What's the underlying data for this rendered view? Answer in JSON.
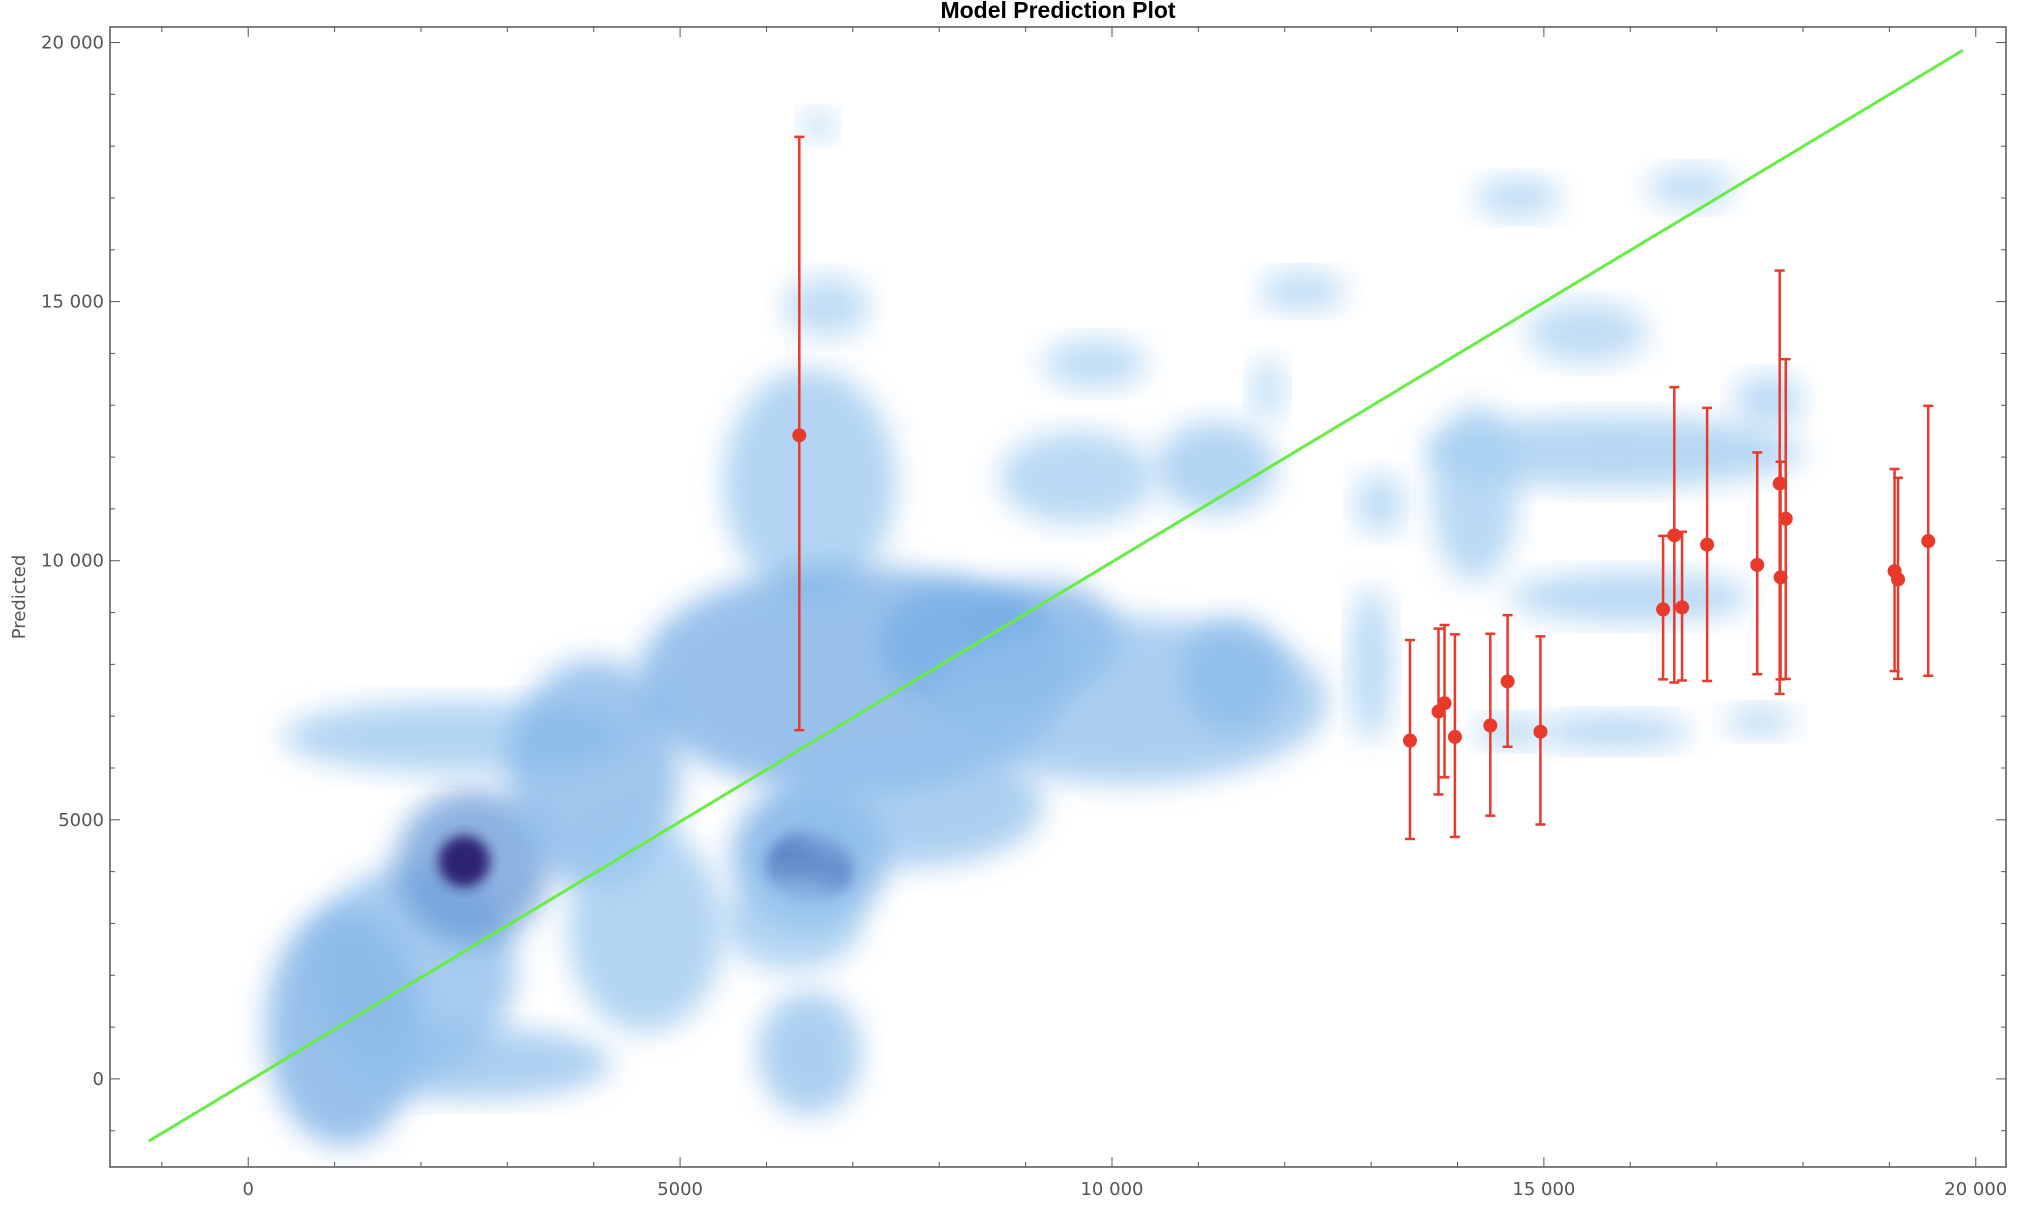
{
  "chart_data": {
    "type": "scatter",
    "title": "Model Prediction Plot",
    "xlabel": "",
    "ylabel": "Predicted",
    "xlim": [
      -1600,
      20350
    ],
    "ylim": [
      -1700,
      20300
    ],
    "x_ticks": [
      0,
      5000,
      10000,
      15000,
      20000
    ],
    "x_tick_labels": [
      "0",
      "5000",
      "10 000",
      "15 000",
      "20 000"
    ],
    "y_ticks": [
      0,
      5000,
      10000,
      15000,
      20000
    ],
    "y_tick_labels": [
      "0",
      "5000",
      "10 000",
      "15 000",
      "20 000"
    ],
    "grid": false,
    "colors": {
      "density_light": "#c6e6fa",
      "density_mid": "#6ea7e3",
      "density_dark": "#2a1a6e",
      "reference_line": "#66ee44",
      "points": "#e8392b",
      "frame": "#555555"
    },
    "reference_line": {
      "x": [
        -1150,
        19850
      ],
      "y": [
        -1200,
        19850
      ]
    },
    "density_blobs": [
      {
        "x": 1100,
        "y": 1000,
        "rx": 900,
        "ry": 2300,
        "level": 0.45
      },
      {
        "x": 1900,
        "y": 2100,
        "rx": 1200,
        "ry": 2000,
        "level": 0.35
      },
      {
        "x": 2600,
        "y": 4100,
        "rx": 900,
        "ry": 1500,
        "level": 0.55
      },
      {
        "x": 2500,
        "y": 4200,
        "rx": 300,
        "ry": 500,
        "level": 1.0
      },
      {
        "x": 2600,
        "y": 300,
        "rx": 1600,
        "ry": 700,
        "level": 0.3
      },
      {
        "x": 2400,
        "y": 6600,
        "rx": 2000,
        "ry": 700,
        "level": 0.25
      },
      {
        "x": 4000,
        "y": 5900,
        "rx": 1000,
        "ry": 2200,
        "level": 0.4
      },
      {
        "x": 4600,
        "y": 2900,
        "rx": 900,
        "ry": 2000,
        "level": 0.25
      },
      {
        "x": 6500,
        "y": 4100,
        "rx": 500,
        "ry": 700,
        "level": 1.0
      },
      {
        "x": 6500,
        "y": 4300,
        "rx": 900,
        "ry": 1400,
        "level": 0.5
      },
      {
        "x": 6500,
        "y": 11500,
        "rx": 1000,
        "ry": 2200,
        "level": 0.25
      },
      {
        "x": 7000,
        "y": 7700,
        "rx": 2500,
        "ry": 2200,
        "level": 0.45
      },
      {
        "x": 8300,
        "y": 8400,
        "rx": 1000,
        "ry": 1200,
        "level": 0.45
      },
      {
        "x": 9200,
        "y": 8500,
        "rx": 900,
        "ry": 1100,
        "level": 0.45
      },
      {
        "x": 10200,
        "y": 7300,
        "rx": 2300,
        "ry": 1600,
        "level": 0.3
      },
      {
        "x": 11400,
        "y": 7800,
        "rx": 600,
        "ry": 1100,
        "level": 0.35
      },
      {
        "x": 11200,
        "y": 11800,
        "rx": 700,
        "ry": 900,
        "level": 0.25
      },
      {
        "x": 6500,
        "y": 500,
        "rx": 600,
        "ry": 1200,
        "level": 0.3
      },
      {
        "x": 9600,
        "y": 11600,
        "rx": 900,
        "ry": 900,
        "level": 0.2
      },
      {
        "x": 15800,
        "y": 12100,
        "rx": 2200,
        "ry": 700,
        "level": 0.22
      },
      {
        "x": 16000,
        "y": 9300,
        "rx": 1400,
        "ry": 500,
        "level": 0.2
      },
      {
        "x": 14200,
        "y": 11300,
        "rx": 500,
        "ry": 1700,
        "level": 0.2
      },
      {
        "x": 15800,
        "y": 6700,
        "rx": 900,
        "ry": 350,
        "level": 0.2
      },
      {
        "x": 13000,
        "y": 8000,
        "rx": 250,
        "ry": 1500,
        "level": 0.18
      },
      {
        "x": 14600,
        "y": 6700,
        "rx": 400,
        "ry": 300,
        "level": 0.18
      },
      {
        "x": 9800,
        "y": 13800,
        "rx": 600,
        "ry": 500,
        "level": 0.15
      },
      {
        "x": 12200,
        "y": 15200,
        "rx": 500,
        "ry": 400,
        "level": 0.15
      },
      {
        "x": 14700,
        "y": 17000,
        "rx": 500,
        "ry": 400,
        "level": 0.15
      },
      {
        "x": 16700,
        "y": 17200,
        "rx": 500,
        "ry": 400,
        "level": 0.15
      },
      {
        "x": 15500,
        "y": 14400,
        "rx": 700,
        "ry": 600,
        "level": 0.15
      },
      {
        "x": 17600,
        "y": 13100,
        "rx": 400,
        "ry": 500,
        "level": 0.18
      },
      {
        "x": 17500,
        "y": 6900,
        "rx": 400,
        "ry": 300,
        "level": 0.15
      },
      {
        "x": 6700,
        "y": 14900,
        "rx": 500,
        "ry": 600,
        "level": 0.15
      },
      {
        "x": 6600,
        "y": 18400,
        "rx": 200,
        "ry": 300,
        "level": 0.12
      },
      {
        "x": 11800,
        "y": 13300,
        "rx": 200,
        "ry": 600,
        "level": 0.12
      },
      {
        "x": 13100,
        "y": 11100,
        "rx": 300,
        "ry": 600,
        "level": 0.15
      },
      {
        "x": 6300,
        "y": 3000,
        "rx": 800,
        "ry": 900,
        "level": 0.25
      },
      {
        "x": 7700,
        "y": 5300,
        "rx": 1500,
        "ry": 1200,
        "level": 0.3
      }
    ],
    "points": [
      {
        "x": 6380,
        "y": 12420,
        "lo": 6730,
        "hi": 18180
      },
      {
        "x": 13450,
        "y": 6530,
        "lo": 4630,
        "hi": 8470
      },
      {
        "x": 13780,
        "y": 7090,
        "lo": 5490,
        "hi": 8690
      },
      {
        "x": 13850,
        "y": 7250,
        "lo": 5820,
        "hi": 8760
      },
      {
        "x": 13970,
        "y": 6600,
        "lo": 4670,
        "hi": 8580
      },
      {
        "x": 14380,
        "y": 6820,
        "lo": 5080,
        "hi": 8590
      },
      {
        "x": 14580,
        "y": 7670,
        "lo": 6410,
        "hi": 8950
      },
      {
        "x": 14960,
        "y": 6700,
        "lo": 4910,
        "hi": 8540
      },
      {
        "x": 16380,
        "y": 9060,
        "lo": 7710,
        "hi": 10480
      },
      {
        "x": 16510,
        "y": 10490,
        "lo": 7650,
        "hi": 13350
      },
      {
        "x": 16600,
        "y": 9100,
        "lo": 7690,
        "hi": 10560
      },
      {
        "x": 16890,
        "y": 10310,
        "lo": 7680,
        "hi": 12950
      },
      {
        "x": 17470,
        "y": 9920,
        "lo": 7810,
        "hi": 12090
      },
      {
        "x": 17730,
        "y": 11490,
        "lo": 7430,
        "hi": 15600
      },
      {
        "x": 17740,
        "y": 9680,
        "lo": 7710,
        "hi": 11910
      },
      {
        "x": 17800,
        "y": 10810,
        "lo": 7720,
        "hi": 13890
      },
      {
        "x": 19060,
        "y": 9800,
        "lo": 7870,
        "hi": 11770
      },
      {
        "x": 19100,
        "y": 9640,
        "lo": 7720,
        "hi": 11600
      },
      {
        "x": 19450,
        "y": 10380,
        "lo": 7780,
        "hi": 12990
      }
    ]
  }
}
